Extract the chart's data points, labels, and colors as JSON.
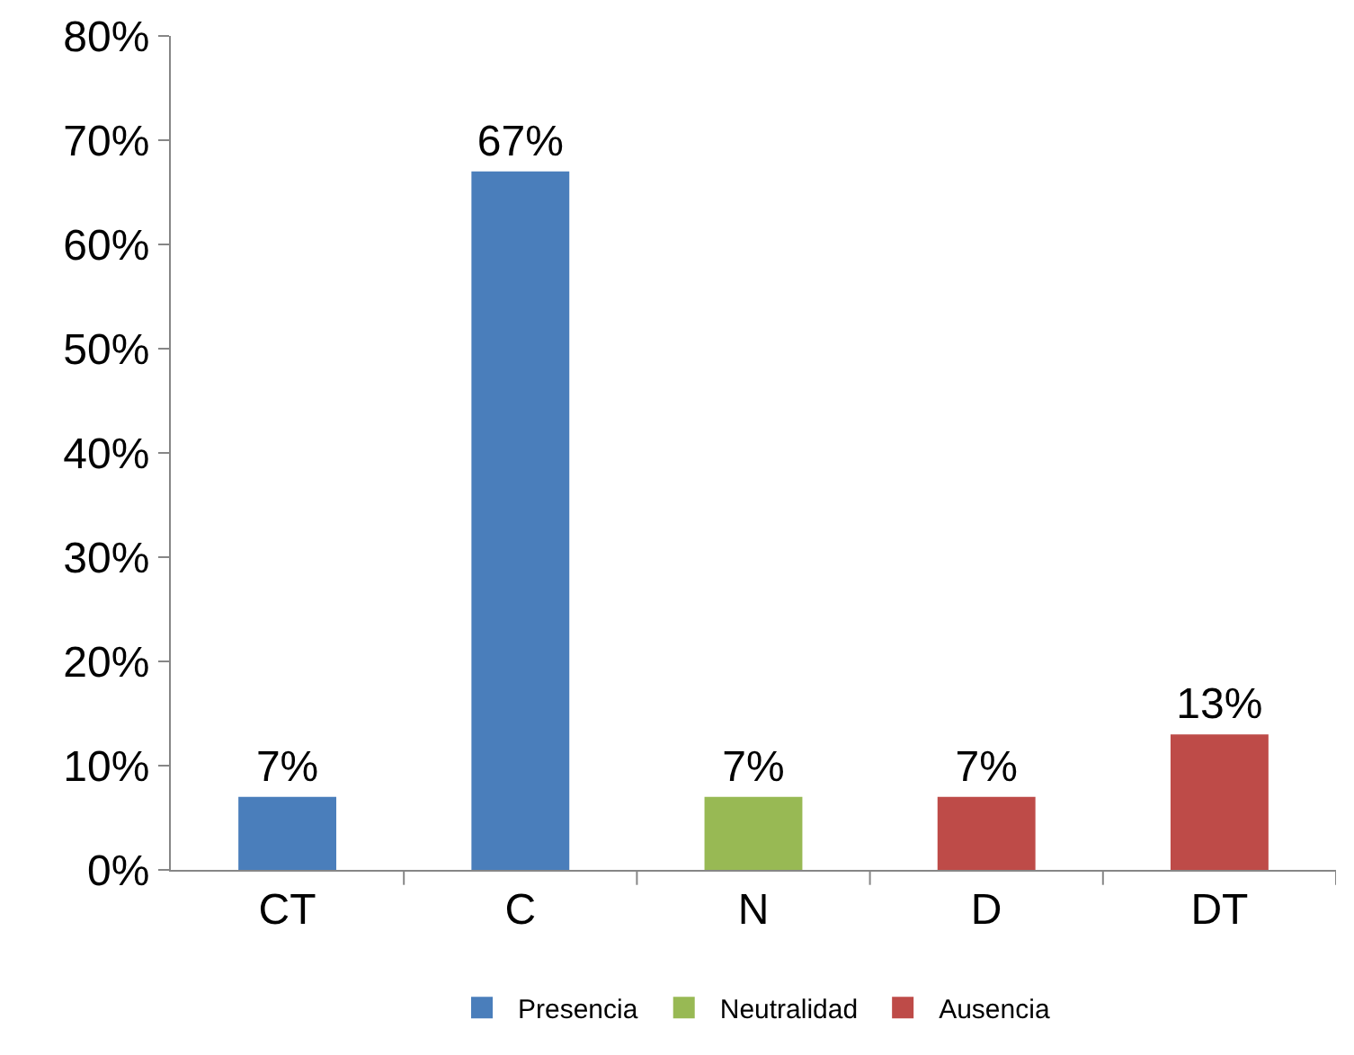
{
  "chart_data": {
    "type": "bar",
    "categories": [
      "CT",
      "C",
      "N",
      "D",
      "DT"
    ],
    "series": [
      {
        "name": "Presencia",
        "color": "#4a7ebb",
        "values": [
          7,
          67,
          null,
          null,
          null
        ],
        "value_labels": [
          "7%",
          "67%",
          null,
          null,
          null
        ]
      },
      {
        "name": "Neutralidad",
        "color": "#98b954",
        "values": [
          null,
          null,
          7,
          null,
          null
        ],
        "value_labels": [
          null,
          null,
          "7%",
          null,
          null
        ]
      },
      {
        "name": "Ausencia",
        "color": "#be4b48",
        "values": [
          null,
          null,
          null,
          7,
          13
        ],
        "value_labels": [
          null,
          null,
          null,
          "7%",
          "13%"
        ]
      }
    ],
    "ylim": [
      0,
      80
    ],
    "yticks": [
      {
        "value": 0,
        "label": "0%"
      },
      {
        "value": 10,
        "label": "10%"
      },
      {
        "value": 20,
        "label": "20%"
      },
      {
        "value": 30,
        "label": "30%"
      },
      {
        "value": 40,
        "label": "40%"
      },
      {
        "value": 50,
        "label": "50%"
      },
      {
        "value": 60,
        "label": "60%"
      },
      {
        "value": 70,
        "label": "70%"
      },
      {
        "value": 80,
        "label": "80%"
      }
    ],
    "grid": false,
    "legend": "bottom"
  }
}
